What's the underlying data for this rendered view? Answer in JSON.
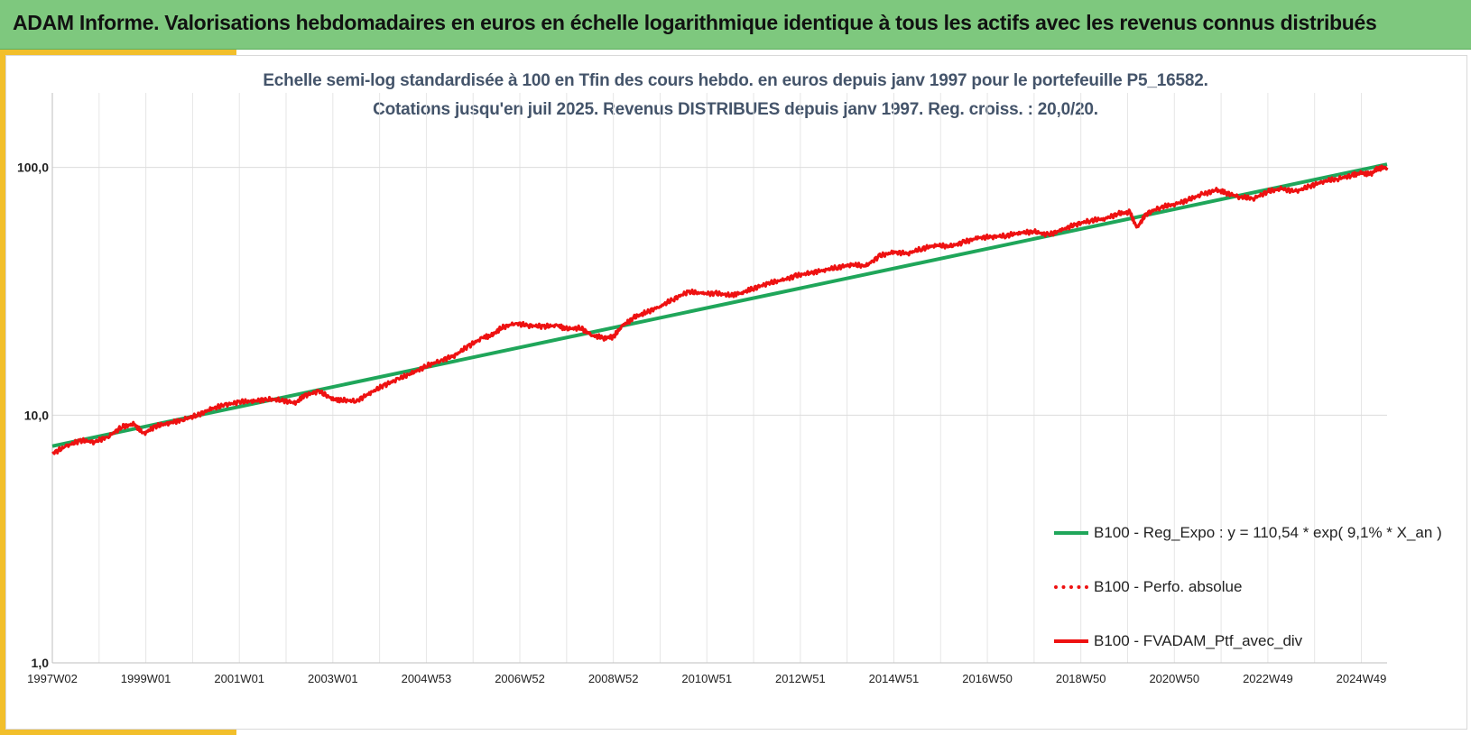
{
  "banner": {
    "title": "ADAM Informe. Valorisations hebdomadaires en euros en échelle logarithmique identique à tous les actifs avec les revenus connus distribués"
  },
  "colors": {
    "banner": "#7ec87e",
    "accent": "#f2bf2b",
    "title_text": "#44546a",
    "regression": "#1fa65a",
    "portfolio": "#ee1111"
  },
  "chart_data": {
    "type": "line",
    "title_lines": [
      "Echelle semi-log standardisée à 100 en Tfin des cours hebdo.  en euros depuis janv 1997 pour le portefeuille P5_16582.",
      "Cotations jusqu'en juil 2025. Revenus DISTRIBUES depuis janv 1997. Reg. croiss. : 20,0/20."
    ],
    "y_scale": "log",
    "ylim": [
      1,
      200
    ],
    "x_range": [
      1997.0,
      2025.55
    ],
    "ytick_values": [
      1,
      10,
      100
    ],
    "ytick_labels": [
      "1,0",
      "10,0",
      "100,0"
    ],
    "x_tick_values": [
      1997.0,
      1999.0,
      2001.0,
      2003.0,
      2005.0,
      2007.0,
      2009.0,
      2011.0,
      2013.0,
      2015.0,
      2017.0,
      2019.0,
      2021.0,
      2023.0,
      2025.0
    ],
    "x_tick_labels": [
      "1997W02",
      "1999W01",
      "2001W01",
      "2003W01",
      "2004W53",
      "2006W52",
      "2008W52",
      "2010W51",
      "2012W51",
      "2014W51",
      "2016W50",
      "2018W50",
      "2020W50",
      "2022W49",
      "2024W49"
    ],
    "grid": true,
    "legend_position": "right",
    "series": [
      {
        "name": "B100 - Reg_Expo : y = 110,54 * exp( 9,1% *  X_an )",
        "style": "solid",
        "color": "#1fa65a",
        "x": [
          1997.0,
          2025.55
        ],
        "values": [
          7.5,
          103
        ]
      },
      {
        "name": "B100 - Perfo. absolue",
        "style": "dotted",
        "color": "#ee1111",
        "x": [],
        "values": []
      },
      {
        "name": "B100 - FVADAM_Ptf_avec_div",
        "style": "solid",
        "color": "#ee1111",
        "x": [
          1997.0,
          1997.3,
          1997.6,
          1997.9,
          1998.2,
          1998.5,
          1998.75,
          1998.95,
          1999.2,
          1999.5,
          1999.8,
          2000.1,
          2000.4,
          2000.7,
          2001.0,
          2001.3,
          2001.6,
          2001.9,
          2002.2,
          2002.4,
          2002.7,
          2003.0,
          2003.2,
          2003.5,
          2003.8,
          2004.1,
          2004.4,
          2004.7,
          2005.0,
          2005.3,
          2005.6,
          2005.9,
          2006.2,
          2006.4,
          2006.6,
          2006.9,
          2007.2,
          2007.5,
          2007.8,
          2008.0,
          2008.3,
          2008.55,
          2008.8,
          2009.0,
          2009.2,
          2009.45,
          2009.7,
          2010.0,
          2010.3,
          2010.6,
          2010.9,
          2011.2,
          2011.5,
          2011.75,
          2012.0,
          2012.3,
          2012.6,
          2012.9,
          2013.2,
          2013.5,
          2013.8,
          2014.1,
          2014.4,
          2014.7,
          2015.0,
          2015.3,
          2015.6,
          2015.9,
          2016.2,
          2016.5,
          2016.8,
          2017.1,
          2017.4,
          2017.7,
          2018.0,
          2018.3,
          2018.6,
          2018.9,
          2019.2,
          2019.5,
          2019.8,
          2020.05,
          2020.2,
          2020.4,
          2020.7,
          2021.0,
          2021.3,
          2021.6,
          2021.9,
          2022.1,
          2022.4,
          2022.7,
          2023.0,
          2023.3,
          2023.6,
          2023.9,
          2024.2,
          2024.5,
          2024.8,
          2025.0,
          2025.2,
          2025.35,
          2025.55
        ],
        "values": [
          7.0,
          7.5,
          7.9,
          7.8,
          8.2,
          9.0,
          9.2,
          8.4,
          9.0,
          9.3,
          9.6,
          10.0,
          10.6,
          11.0,
          11.3,
          11.4,
          11.6,
          11.5,
          11.2,
          12.0,
          12.5,
          11.6,
          11.5,
          11.4,
          12.3,
          13.2,
          14.0,
          14.8,
          15.8,
          16.6,
          17.4,
          19.0,
          20.5,
          21.0,
          22.5,
          23.5,
          23.0,
          22.8,
          23.0,
          22.3,
          22.5,
          21.0,
          20.5,
          20.7,
          23.0,
          24.8,
          26.0,
          27.5,
          29.5,
          31.5,
          31.0,
          31.0,
          30.5,
          31.2,
          32.5,
          34.0,
          35.0,
          36.5,
          37.5,
          38.5,
          39.5,
          40.5,
          40.0,
          44.0,
          45.5,
          45.0,
          47.0,
          48.5,
          48.0,
          50.0,
          52.0,
          52.5,
          53.0,
          54.5,
          55.0,
          53.5,
          56.0,
          59.0,
          61.0,
          62.0,
          65.0,
          66.0,
          57.0,
          65.0,
          69.0,
          71.0,
          74.0,
          78.0,
          81.0,
          79.0,
          76.0,
          75.0,
          80.0,
          82.0,
          80.0,
          84.0,
          88.0,
          90.0,
          93.0,
          95.0,
          94.0,
          99.0,
          100.0
        ]
      }
    ]
  }
}
